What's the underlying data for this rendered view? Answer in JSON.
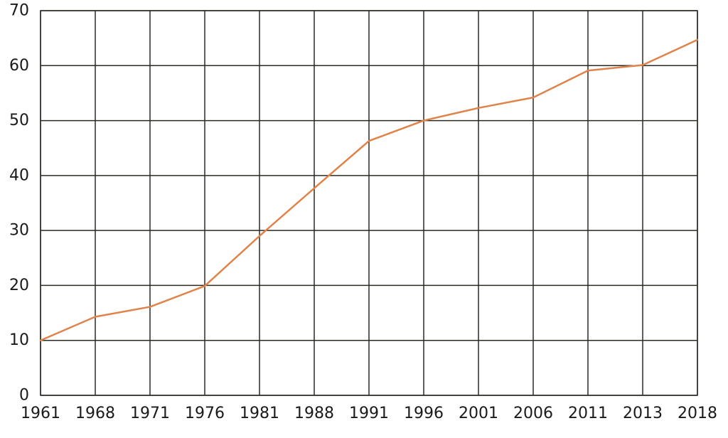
{
  "chart_data": {
    "type": "line",
    "title": "",
    "xlabel": "",
    "ylabel": "",
    "categories": [
      "1961",
      "1968",
      "1971",
      "1976",
      "1981",
      "1988",
      "1991",
      "1996",
      "2001",
      "2006",
      "2011",
      "2013",
      "2018"
    ],
    "series": [
      {
        "values": [
          10.0,
          14.3,
          16.1,
          19.9,
          29.0,
          37.7,
          46.3,
          50.0,
          52.3,
          54.2,
          59.1,
          60.1,
          64.7
        ],
        "color": "#e0834a"
      }
    ],
    "ylim": [
      0,
      70
    ],
    "yticks": [
      0,
      10,
      20,
      30,
      40,
      50,
      60,
      70
    ],
    "grid": true,
    "legend": "none"
  }
}
